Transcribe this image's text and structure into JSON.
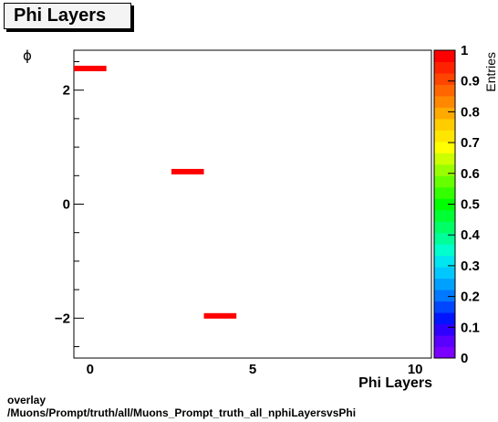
{
  "title": "Phi Layers",
  "footer": {
    "line1": "overlay",
    "line2": "/Muons/Prompt/truth/all/Muons_Prompt_truth_all_nphiLayersvsPhi"
  },
  "chart_data": {
    "type": "heatmap",
    "title": "Phi Layers",
    "xlabel": "Phi Layers",
    "ylabel": "ϕ",
    "zlabel": "Entries",
    "xlim": [
      -0.5,
      10.5
    ],
    "ylim": [
      -2.7,
      2.7
    ],
    "zlim": [
      0,
      1
    ],
    "xticks": [
      0,
      5,
      10
    ],
    "yticks": [
      -2,
      0,
      2
    ],
    "zticks": [
      0,
      0.1,
      0.2,
      0.3,
      0.4,
      0.5,
      0.6,
      0.7,
      0.8,
      0.9,
      1
    ],
    "cells": [
      {
        "x": 0,
        "y": 2.38,
        "value": 1
      },
      {
        "x": 3,
        "y": 0.57,
        "value": 1
      },
      {
        "x": 4,
        "y": -1.96,
        "value": 1
      }
    ],
    "palette": [
      "#7a00ff",
      "#5a00ff",
      "#3000ff",
      "#0014ff",
      "#0046ff",
      "#0078ff",
      "#00a0ff",
      "#00c8ff",
      "#00e6f0",
      "#00ffcc",
      "#00ff99",
      "#00ff66",
      "#00ff33",
      "#00ff00",
      "#33ff00",
      "#66ff00",
      "#99ff00",
      "#ccff00",
      "#ffff00",
      "#ffe600",
      "#ffcc00",
      "#ffaa00",
      "#ff8800",
      "#ff6600",
      "#ff4400",
      "#ff2200",
      "#ff0000"
    ]
  }
}
